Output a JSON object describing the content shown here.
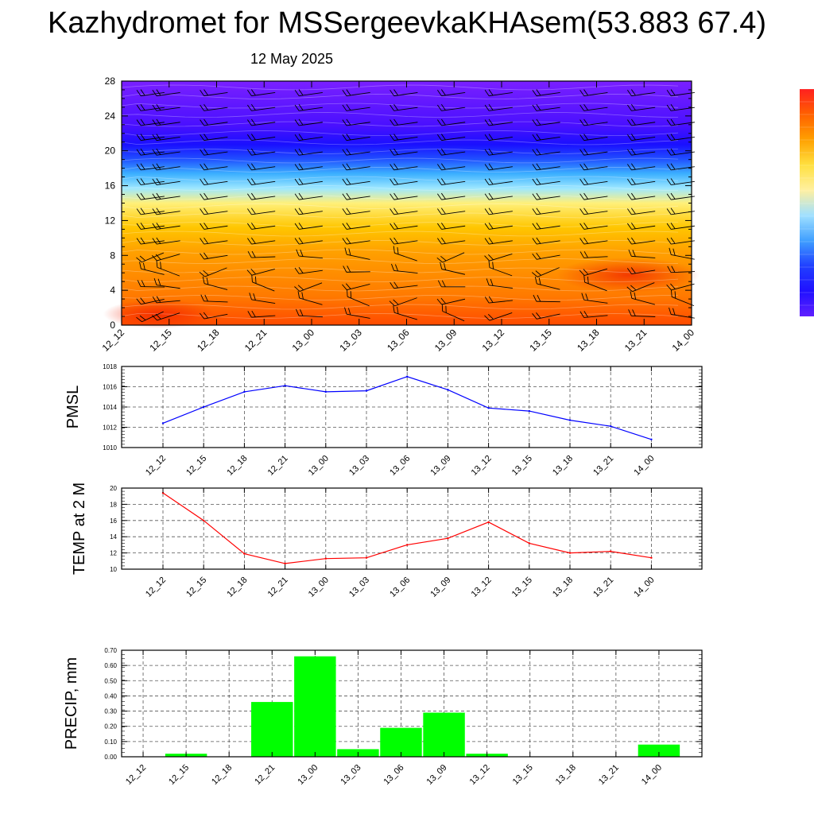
{
  "title": "Kazhydromet for MSSergeevkaKHAsem(53.883 67.4)",
  "date": "12 May 2025",
  "colors": {
    "pmsl_line": "#0000ff",
    "temp_line": "#ff0000",
    "precip_bar": "#00ff00",
    "colormap": [
      "#ff4a00",
      "#ff7a00",
      "#ffa000",
      "#ffc600",
      "#fff07a",
      "#9ee8ff",
      "#3cb0ff",
      "#2050ff",
      "#1a10ff",
      "#4a10ff",
      "#7a20ff"
    ]
  },
  "chart_data": [
    {
      "id": "crosssection",
      "type": "heatmap",
      "title": "",
      "xlabel": "",
      "ylabel": "",
      "x": [
        "12_12",
        "12_15",
        "12_18",
        "12_21",
        "13_00",
        "13_03",
        "13_06",
        "13_09",
        "13_12",
        "13_15",
        "13_18",
        "13_21",
        "14_00"
      ],
      "yticks": [
        0,
        4,
        8,
        12,
        16,
        20,
        24,
        28
      ],
      "ylim": [
        0,
        28
      ],
      "grid": false,
      "overlay": "wind barbs"
    },
    {
      "id": "pmsl",
      "type": "line",
      "ylabel": "PMSL",
      "x": [
        "12_12",
        "12_15",
        "12_18",
        "12_21",
        "13_00",
        "13_03",
        "13_06",
        "13_09",
        "13_12",
        "13_15",
        "13_18",
        "13_21",
        "14_00"
      ],
      "series": [
        {
          "values": [
            1012.4,
            1014.0,
            1015.5,
            1016.1,
            1015.5,
            1015.6,
            1017.0,
            1015.7,
            1013.9,
            1013.6,
            1012.7,
            1012.1,
            1010.8
          ]
        }
      ],
      "yticks": [
        1010,
        1012,
        1014,
        1016,
        1018
      ],
      "ylim": [
        1010,
        1018
      ],
      "grid": true
    },
    {
      "id": "temp",
      "type": "line",
      "ylabel": "TEMP at 2 M",
      "x": [
        "12_12",
        "12_15",
        "12_18",
        "12_21",
        "13_00",
        "13_03",
        "13_06",
        "13_09",
        "13_12",
        "13_15",
        "13_18",
        "13_21",
        "14_00"
      ],
      "series": [
        {
          "values": [
            19.4,
            16.0,
            11.9,
            10.7,
            11.3,
            11.4,
            13.0,
            13.8,
            15.8,
            13.2,
            12.0,
            12.2,
            11.4
          ]
        }
      ],
      "yticks": [
        10,
        12,
        14,
        16,
        18,
        20
      ],
      "ylim": [
        10,
        20
      ],
      "grid": true
    },
    {
      "id": "precip",
      "type": "bar",
      "ylabel": "PRECIP, mm",
      "categories": [
        "12_12",
        "12_15",
        "12_18",
        "12_21",
        "13_00",
        "13_03",
        "13_06",
        "13_09",
        "13_12",
        "13_15",
        "13_18",
        "13_21",
        "14_00"
      ],
      "values": [
        0,
        0.02,
        0,
        0.36,
        0.66,
        0.05,
        0.19,
        0.29,
        0.02,
        0,
        0,
        0,
        0.08
      ],
      "yticks": [
        "0.00",
        "0.10",
        "0.20",
        "0.30",
        "0.40",
        "0.50",
        "0.60",
        "0.70"
      ],
      "ylim": [
        0,
        0.7
      ],
      "grid": true
    }
  ]
}
